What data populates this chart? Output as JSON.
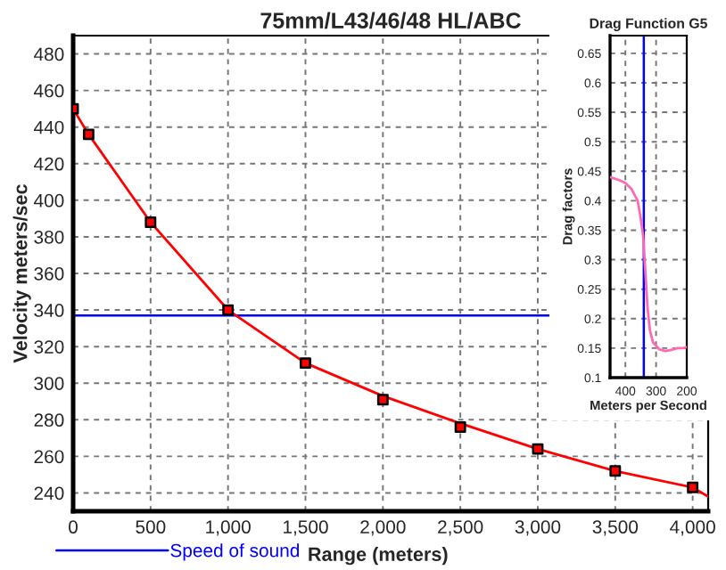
{
  "chart_data": [
    {
      "type": "line",
      "title": "75mm/L43/46/48 HL/ABC",
      "xlabel": "Range (meters)",
      "ylabel": "Velocity meters/sec",
      "series": [
        {
          "type": "line",
          "color": "#ff0000",
          "marker": "none",
          "x": [
            0,
            100,
            500,
            1000,
            1500,
            2000,
            2500,
            3000,
            3500,
            4000,
            4100
          ],
          "values": [
            450,
            436,
            388,
            340,
            311,
            293,
            278,
            264,
            252,
            243,
            238
          ]
        },
        {
          "type": "scatter",
          "color": "#ff0000",
          "marker": "square",
          "x": [
            0,
            100,
            500,
            1000,
            1500,
            2000,
            2500,
            3000,
            3500,
            4000
          ],
          "values": [
            450,
            436,
            388,
            340,
            311,
            291,
            276,
            264,
            252,
            243
          ]
        }
      ],
      "ref_lines": [
        {
          "axis": "y",
          "value": 337,
          "label": "Speed of sound",
          "color": "#0000ff",
          "line_style": "solid"
        }
      ],
      "xlim": [
        0,
        4100
      ],
      "ylim": [
        230,
        490
      ],
      "xticks": [
        0,
        500,
        {
          "value": 1000,
          "label": "1,000"
        },
        {
          "value": 1500,
          "label": "1,500"
        },
        {
          "value": 2000,
          "label": "2,000"
        },
        {
          "value": 2500,
          "label": "2,500"
        },
        {
          "value": 3000,
          "label": "3,000"
        },
        {
          "value": 3500,
          "label": "3,500"
        },
        {
          "value": 4000,
          "label": "4,000"
        }
      ],
      "yticks": [
        240,
        260,
        280,
        300,
        320,
        340,
        360,
        380,
        400,
        420,
        440,
        460,
        480
      ],
      "grid": true,
      "legend": "bottom left"
    },
    {
      "type": "line",
      "title": "Drag Function G5",
      "xlabel": "Meters per Second",
      "ylabel": "Drag factors",
      "series": [
        {
          "color": "#ff69b4",
          "x": [
            450,
            420,
            400,
            380,
            360,
            350,
            342,
            335,
            328,
            320,
            310,
            290,
            270,
            250,
            230,
            210,
            200
          ],
          "values": [
            0.44,
            0.435,
            0.43,
            0.42,
            0.4,
            0.37,
            0.34,
            0.28,
            0.22,
            0.18,
            0.16,
            0.148,
            0.145,
            0.147,
            0.15,
            0.15,
            0.152
          ]
        }
      ],
      "ref_lines": [
        {
          "axis": "x",
          "value": 340,
          "color": "#0000ff",
          "line_style": "solid"
        }
      ],
      "xlim": [
        450,
        200
      ],
      "ylim": [
        0.1,
        0.68
      ],
      "xticks": [
        400,
        300,
        200
      ],
      "yticks": [
        0.1,
        0.15,
        0.2,
        0.25,
        0.3,
        0.35,
        0.4,
        0.45,
        0.5,
        0.55,
        0.6,
        0.65
      ],
      "grid": true
    }
  ]
}
